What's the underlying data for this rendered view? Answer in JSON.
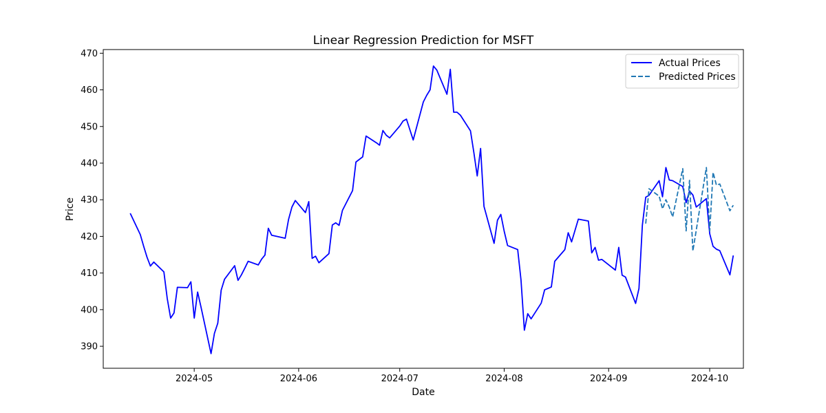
{
  "colors": {
    "actual": "#0000ff",
    "predicted": "#1f77b4",
    "axes": "#000000",
    "legend_border": "#cccccc"
  },
  "chart_data": {
    "type": "line",
    "title": "Linear Regression Prediction for MSFT",
    "xlabel": "Date",
    "ylabel": "Price",
    "xlim": [
      "2024-04-04",
      "2024-10-11"
    ],
    "ylim": [
      384,
      471
    ],
    "grid": false,
    "legend_position": "top-right",
    "x_ticks": [
      "2024-05-01",
      "2024-06-01",
      "2024-07-01",
      "2024-08-01",
      "2024-09-01",
      "2024-10-01"
    ],
    "x_tick_labels": [
      "2024-05",
      "2024-06",
      "2024-07",
      "2024-08",
      "2024-09",
      "2024-10"
    ],
    "y_ticks": [
      390,
      400,
      410,
      420,
      430,
      440,
      450,
      460,
      470
    ],
    "series": [
      {
        "name": "Actual Prices",
        "style": "solid",
        "color": "#0000ff",
        "x": [
          "2024-04-12",
          "2024-04-15",
          "2024-04-16",
          "2024-04-17",
          "2024-04-18",
          "2024-04-19",
          "2024-04-22",
          "2024-04-23",
          "2024-04-24",
          "2024-04-25",
          "2024-04-26",
          "2024-04-29",
          "2024-04-30",
          "2024-05-01",
          "2024-05-02",
          "2024-05-03",
          "2024-05-06",
          "2024-05-07",
          "2024-05-08",
          "2024-05-09",
          "2024-05-10",
          "2024-05-13",
          "2024-05-14",
          "2024-05-15",
          "2024-05-16",
          "2024-05-17",
          "2024-05-20",
          "2024-05-21",
          "2024-05-22",
          "2024-05-23",
          "2024-05-24",
          "2024-05-28",
          "2024-05-29",
          "2024-05-30",
          "2024-05-31",
          "2024-06-03",
          "2024-06-04",
          "2024-06-05",
          "2024-06-06",
          "2024-06-07",
          "2024-06-10",
          "2024-06-11",
          "2024-06-12",
          "2024-06-13",
          "2024-06-14",
          "2024-06-17",
          "2024-06-18",
          "2024-06-20",
          "2024-06-21",
          "2024-06-24",
          "2024-06-25",
          "2024-06-26",
          "2024-06-27",
          "2024-06-28",
          "2024-07-01",
          "2024-07-02",
          "2024-07-03",
          "2024-07-05",
          "2024-07-08",
          "2024-07-09",
          "2024-07-10",
          "2024-07-11",
          "2024-07-12",
          "2024-07-15",
          "2024-07-16",
          "2024-07-17",
          "2024-07-18",
          "2024-07-19",
          "2024-07-22",
          "2024-07-23",
          "2024-07-24",
          "2024-07-25",
          "2024-07-26",
          "2024-07-29",
          "2024-07-30",
          "2024-07-31",
          "2024-08-01",
          "2024-08-02",
          "2024-08-05",
          "2024-08-06",
          "2024-08-07",
          "2024-08-08",
          "2024-08-09",
          "2024-08-12",
          "2024-08-13",
          "2024-08-14",
          "2024-08-15",
          "2024-08-16",
          "2024-08-19",
          "2024-08-20",
          "2024-08-21",
          "2024-08-22",
          "2024-08-23",
          "2024-08-26",
          "2024-08-27",
          "2024-08-28",
          "2024-08-29",
          "2024-08-30",
          "2024-09-03",
          "2024-09-04",
          "2024-09-05",
          "2024-09-06",
          "2024-09-09",
          "2024-09-10",
          "2024-09-11",
          "2024-09-12",
          "2024-09-13",
          "2024-09-16",
          "2024-09-17",
          "2024-09-18",
          "2024-09-19",
          "2024-09-20",
          "2024-09-23",
          "2024-09-24",
          "2024-09-25",
          "2024-09-26",
          "2024-09-27",
          "2024-09-30",
          "2024-10-01",
          "2024-10-02",
          "2024-10-03",
          "2024-10-04",
          "2024-10-07",
          "2024-10-08"
        ],
        "values": [
          426.3,
          420.5,
          417.3,
          414.3,
          411.9,
          413.0,
          410.3,
          403.0,
          397.7,
          399.1,
          406.1,
          406.0,
          407.6,
          397.7,
          404.8,
          400.8,
          388.0,
          393.5,
          396.3,
          405.3,
          408.3,
          412.0,
          408.0,
          409.5,
          411.3,
          413.2,
          412.2,
          413.8,
          414.9,
          422.2,
          420.3,
          419.5,
          424.6,
          428.0,
          429.8,
          426.5,
          429.5,
          414.0,
          414.6,
          412.8,
          415.3,
          423.1,
          423.7,
          423.0,
          427.1,
          432.5,
          440.3,
          441.7,
          447.4,
          445.6,
          444.9,
          448.9,
          447.6,
          446.9,
          450.1,
          451.5,
          452.0,
          446.3,
          456.7,
          458.5,
          460.0,
          466.5,
          465.4,
          458.8,
          465.6,
          453.9,
          453.9,
          453.1,
          448.8,
          442.9,
          436.5,
          444.0,
          428.2,
          418.1,
          424.4,
          426.0,
          421.4,
          417.5,
          416.4,
          408.1,
          394.4,
          398.9,
          397.5,
          401.8,
          405.4,
          405.8,
          406.2,
          413.2,
          416.4,
          421.0,
          418.5,
          421.6,
          424.7,
          424.2,
          415.5,
          417.0,
          413.5,
          413.7,
          410.8,
          417.0,
          409.4,
          408.9,
          401.7,
          405.8,
          423.0,
          430.7,
          431.2,
          435.2,
          430.8,
          438.8,
          435.4,
          435.2,
          433.6,
          429.2,
          432.4,
          431.3,
          428.0,
          430.3,
          420.7,
          417.3,
          416.5,
          416.1,
          409.5,
          414.8
        ]
      },
      {
        "name": "Predicted Prices",
        "style": "dashed",
        "color": "#1f77b4",
        "x": [
          "2024-09-12",
          "2024-09-13",
          "2024-09-16",
          "2024-09-17",
          "2024-09-18",
          "2024-09-19",
          "2024-09-20",
          "2024-09-23",
          "2024-09-24",
          "2024-09-25",
          "2024-09-26",
          "2024-09-27",
          "2024-09-30",
          "2024-10-01",
          "2024-10-02",
          "2024-10-03",
          "2024-10-04",
          "2024-10-07",
          "2024-10-08"
        ],
        "values": [
          423.5,
          433.0,
          431.0,
          427.5,
          430.0,
          428.0,
          425.3,
          438.5,
          421.5,
          435.3,
          416.0,
          421.7,
          438.8,
          421.5,
          437.5,
          434.0,
          434.3,
          427.0,
          428.5
        ]
      }
    ]
  }
}
